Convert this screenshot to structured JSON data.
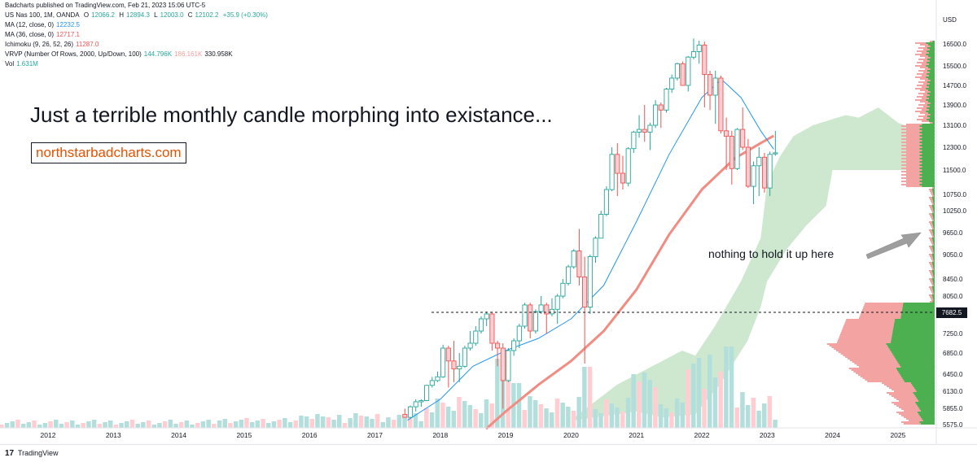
{
  "header": {
    "published": "Badcharts published on TradingView.com, Feb 21, 2023 15:06 UTC-5",
    "symbol": "US Nas 100, 1M, OANDA",
    "ohlc": {
      "o_label": "O",
      "o": "12066.2",
      "h_label": "H",
      "h": "12894.3",
      "l_label": "L",
      "l": "12003.0",
      "c_label": "C",
      "c": "12102.2",
      "change": "+35.9 (+0.30%)"
    },
    "ma12_label": "MA (12, close, 0)",
    "ma12_value": "12232.5",
    "ma36_label": "MA (36, close, 0)",
    "ma36_value": "12717.1",
    "ichimoku_label": "Ichimoku (9, 26, 52, 26)",
    "ichimoku_value": "11287.0",
    "vrvp_label": "VRVP (Number Of Rows, 2000, Up/Down, 100)",
    "vrvp_up": "144.796K",
    "vrvp_down": "186.161K",
    "vrvp_total": "330.958K",
    "vol_label": "Vol",
    "vol_value": "1.631M"
  },
  "headline": "Just a terrible monthly candle morphing into existance...",
  "site": "northstarbadcharts.com",
  "annotation": "nothing to hold it up here",
  "price_tag": "7682.5",
  "footer": {
    "logo": "17",
    "brand": "TradingView"
  },
  "colors": {
    "up": "#26a69a",
    "down": "#ef5350",
    "ma12": "#2196f3",
    "ma36": "#f28b82",
    "cloud": "#a5d6a7",
    "vol_up": "#b2dfdb",
    "vol_down": "#ffcdd2",
    "vp_up": "#4caf50",
    "vp_down": "#f4a3a3",
    "arrow": "#9e9e9e"
  },
  "chart_data": {
    "type": "candlestick",
    "currency": "USD",
    "x_ticks": [
      "2012",
      "2013",
      "2014",
      "2015",
      "2016",
      "2017",
      "2018",
      "2019",
      "2020",
      "2021",
      "2022",
      "2023",
      "2024",
      "2025"
    ],
    "y_ticks": [
      "16500.0",
      "15500.0",
      "14700.0",
      "13900.0",
      "13100.0",
      "12300.0",
      "11500.0",
      "10750.0",
      "10250.0",
      "9650.0",
      "9050.0",
      "8450.0",
      "8050.0",
      "7682.5",
      "7250.0",
      "6850.0",
      "6450.0",
      "6130.0",
      "5855.0",
      "5575.0"
    ],
    "candles": [
      {
        "t": "2017-06",
        "o": 5750,
        "h": 5850,
        "l": 5700,
        "c": 5700
      },
      {
        "t": "2017-07",
        "o": 5700,
        "h": 5900,
        "l": 5680,
        "c": 5880
      },
      {
        "t": "2017-08",
        "o": 5880,
        "h": 6000,
        "l": 5800,
        "c": 5960
      },
      {
        "t": "2017-09",
        "o": 5960,
        "h": 6000,
        "l": 5880,
        "c": 5980
      },
      {
        "t": "2017-10",
        "o": 5980,
        "h": 6250,
        "l": 5970,
        "c": 6240
      },
      {
        "t": "2017-11",
        "o": 6240,
        "h": 6400,
        "l": 6200,
        "c": 6330
      },
      {
        "t": "2017-12",
        "o": 6330,
        "h": 6500,
        "l": 6300,
        "c": 6400
      },
      {
        "t": "2018-01",
        "o": 6400,
        "h": 7020,
        "l": 6380,
        "c": 6950
      },
      {
        "t": "2018-02",
        "o": 6950,
        "h": 7000,
        "l": 6200,
        "c": 6700
      },
      {
        "t": "2018-03",
        "o": 6700,
        "h": 7100,
        "l": 6300,
        "c": 6550
      },
      {
        "t": "2018-04",
        "o": 6550,
        "h": 6850,
        "l": 6300,
        "c": 6600
      },
      {
        "t": "2018-05",
        "o": 6600,
        "h": 7000,
        "l": 6570,
        "c": 6950
      },
      {
        "t": "2018-06",
        "o": 6950,
        "h": 7300,
        "l": 6900,
        "c": 7050
      },
      {
        "t": "2018-07",
        "o": 7050,
        "h": 7400,
        "l": 7000,
        "c": 7300
      },
      {
        "t": "2018-08",
        "o": 7300,
        "h": 7600,
        "l": 7250,
        "c": 7550
      },
      {
        "t": "2018-09",
        "o": 7550,
        "h": 7700,
        "l": 7400,
        "c": 7650
      },
      {
        "t": "2018-10",
        "o": 7650,
        "h": 7700,
        "l": 6900,
        "c": 7050
      },
      {
        "t": "2018-11",
        "o": 7050,
        "h": 7100,
        "l": 6600,
        "c": 6950
      },
      {
        "t": "2018-12",
        "o": 6950,
        "h": 7050,
        "l": 5850,
        "c": 6330
      },
      {
        "t": "2019-01",
        "o": 6330,
        "h": 6950,
        "l": 6300,
        "c": 6900
      },
      {
        "t": "2019-02",
        "o": 6900,
        "h": 7150,
        "l": 6800,
        "c": 7100
      },
      {
        "t": "2019-03",
        "o": 7100,
        "h": 7450,
        "l": 6950,
        "c": 7400
      },
      {
        "t": "2019-04",
        "o": 7400,
        "h": 7900,
        "l": 7350,
        "c": 7850
      },
      {
        "t": "2019-05",
        "o": 7850,
        "h": 7900,
        "l": 7150,
        "c": 7300
      },
      {
        "t": "2019-06",
        "o": 7300,
        "h": 7750,
        "l": 7250,
        "c": 7700
      },
      {
        "t": "2019-07",
        "o": 7700,
        "h": 8050,
        "l": 7650,
        "c": 7850
      },
      {
        "t": "2019-08",
        "o": 7850,
        "h": 7900,
        "l": 7250,
        "c": 7650
      },
      {
        "t": "2019-09",
        "o": 7650,
        "h": 8000,
        "l": 7600,
        "c": 7750
      },
      {
        "t": "2019-10",
        "o": 7750,
        "h": 8100,
        "l": 7450,
        "c": 8050
      },
      {
        "t": "2019-11",
        "o": 8050,
        "h": 8450,
        "l": 8000,
        "c": 8350
      },
      {
        "t": "2019-12",
        "o": 8350,
        "h": 8800,
        "l": 8300,
        "c": 8750
      },
      {
        "t": "2020-01",
        "o": 8750,
        "h": 9200,
        "l": 8700,
        "c": 9150
      },
      {
        "t": "2020-02",
        "o": 9150,
        "h": 9750,
        "l": 8300,
        "c": 8500
      },
      {
        "t": "2020-03",
        "o": 8500,
        "h": 9000,
        "l": 6650,
        "c": 7800
      },
      {
        "t": "2020-04",
        "o": 7800,
        "h": 9050,
        "l": 7650,
        "c": 9000
      },
      {
        "t": "2020-05",
        "o": 9000,
        "h": 9550,
        "l": 8850,
        "c": 9500
      },
      {
        "t": "2020-06",
        "o": 9500,
        "h": 10250,
        "l": 9500,
        "c": 10150
      },
      {
        "t": "2020-07",
        "o": 10150,
        "h": 11000,
        "l": 10100,
        "c": 10900
      },
      {
        "t": "2020-08",
        "o": 10900,
        "h": 12300,
        "l": 10850,
        "c": 12050
      },
      {
        "t": "2020-09",
        "o": 12050,
        "h": 12450,
        "l": 10700,
        "c": 11400
      },
      {
        "t": "2020-10",
        "o": 11400,
        "h": 12000,
        "l": 10900,
        "c": 11100
      },
      {
        "t": "2020-11",
        "o": 11100,
        "h": 12300,
        "l": 11000,
        "c": 12250
      },
      {
        "t": "2020-12",
        "o": 12250,
        "h": 12900,
        "l": 12100,
        "c": 12850
      },
      {
        "t": "2021-01",
        "o": 12850,
        "h": 13500,
        "l": 12650,
        "c": 12950
      },
      {
        "t": "2021-02",
        "o": 12950,
        "h": 13900,
        "l": 12500,
        "c": 12850
      },
      {
        "t": "2021-03",
        "o": 12850,
        "h": 13200,
        "l": 12200,
        "c": 13100
      },
      {
        "t": "2021-04",
        "o": 13100,
        "h": 14100,
        "l": 13000,
        "c": 13900
      },
      {
        "t": "2021-05",
        "o": 13900,
        "h": 14000,
        "l": 13000,
        "c": 13700
      },
      {
        "t": "2021-06",
        "o": 13700,
        "h": 14600,
        "l": 13600,
        "c": 14550
      },
      {
        "t": "2021-07",
        "o": 14550,
        "h": 15150,
        "l": 14400,
        "c": 15000
      },
      {
        "t": "2021-08",
        "o": 15000,
        "h": 15650,
        "l": 14900,
        "c": 15600
      },
      {
        "t": "2021-09",
        "o": 15600,
        "h": 15700,
        "l": 14750,
        "c": 14700
      },
      {
        "t": "2021-10",
        "o": 14700,
        "h": 15950,
        "l": 14450,
        "c": 15900
      },
      {
        "t": "2021-11",
        "o": 15900,
        "h": 16750,
        "l": 15800,
        "c": 16150
      },
      {
        "t": "2021-12",
        "o": 16150,
        "h": 16650,
        "l": 15600,
        "c": 16450
      },
      {
        "t": "2022-01",
        "o": 16450,
        "h": 16600,
        "l": 13800,
        "c": 15150
      },
      {
        "t": "2022-02",
        "o": 15150,
        "h": 15300,
        "l": 13700,
        "c": 14300
      },
      {
        "t": "2022-03",
        "o": 14300,
        "h": 15300,
        "l": 13150,
        "c": 15000
      },
      {
        "t": "2022-04",
        "o": 15000,
        "h": 15100,
        "l": 12800,
        "c": 12900
      },
      {
        "t": "2022-05",
        "o": 12900,
        "h": 13400,
        "l": 11500,
        "c": 12700
      },
      {
        "t": "2022-06",
        "o": 12700,
        "h": 12900,
        "l": 11050,
        "c": 11550
      },
      {
        "t": "2022-07",
        "o": 11550,
        "h": 13000,
        "l": 11500,
        "c": 12950
      },
      {
        "t": "2022-08",
        "o": 12950,
        "h": 13800,
        "l": 12200,
        "c": 12300
      },
      {
        "t": "2022-09",
        "o": 12300,
        "h": 12600,
        "l": 10950,
        "c": 11000
      },
      {
        "t": "2022-10",
        "o": 11000,
        "h": 11800,
        "l": 10450,
        "c": 11650
      },
      {
        "t": "2022-11",
        "o": 11650,
        "h": 12300,
        "l": 10700,
        "c": 11950
      },
      {
        "t": "2022-12",
        "o": 11950,
        "h": 12100,
        "l": 10800,
        "c": 10950
      },
      {
        "t": "2023-01",
        "o": 10950,
        "h": 12150,
        "l": 10700,
        "c": 12050
      },
      {
        "t": "2023-02",
        "o": 12066.2,
        "h": 12894.3,
        "l": 12003.0,
        "c": 12102.2
      }
    ],
    "ma12": [
      [
        2017.5,
        5650
      ],
      [
        2018.0,
        6000
      ],
      [
        2018.5,
        6600
      ],
      [
        2019.0,
        6900
      ],
      [
        2019.5,
        7150
      ],
      [
        2020.0,
        7550
      ],
      [
        2020.5,
        8300
      ],
      [
        2021.0,
        9950
      ],
      [
        2021.5,
        12050
      ],
      [
        2022.0,
        14200
      ],
      [
        2022.3,
        14950
      ],
      [
        2022.6,
        14200
      ],
      [
        2022.9,
        12900
      ],
      [
        2023.1,
        12232.5
      ]
    ],
    "ma36": [
      [
        2018.7,
        5500
      ],
      [
        2019.0,
        5800
      ],
      [
        2019.5,
        6250
      ],
      [
        2020.0,
        6700
      ],
      [
        2020.5,
        7300
      ],
      [
        2021.0,
        8200
      ],
      [
        2021.5,
        9600
      ],
      [
        2022.0,
        10900
      ],
      [
        2022.5,
        11900
      ],
      [
        2022.9,
        12450
      ],
      [
        2023.1,
        12717.1
      ]
    ],
    "cloud_upper": [
      [
        2020.05,
        5700
      ],
      [
        2020.7,
        6250
      ],
      [
        2021.7,
        6900
      ],
      [
        2021.9,
        6800
      ],
      [
        2022.2,
        7400
      ],
      [
        2022.6,
        8400
      ],
      [
        2022.9,
        9500
      ],
      [
        2023.0,
        11100
      ],
      [
        2023.2,
        12000
      ],
      [
        2023.4,
        12700
      ],
      [
        2023.7,
        13100
      ],
      [
        2024.2,
        13500
      ],
      [
        2024.4,
        13400
      ],
      [
        2024.7,
        13800
      ],
      [
        2025.0,
        13200
      ],
      [
        2025.1,
        13100
      ],
      [
        2025.2,
        12900
      ]
    ],
    "cloud_lower": [
      [
        2020.05,
        5650
      ],
      [
        2021.0,
        5800
      ],
      [
        2021.4,
        5700
      ],
      [
        2021.9,
        5750
      ],
      [
        2022.3,
        6300
      ],
      [
        2022.7,
        7100
      ],
      [
        2022.9,
        7800
      ],
      [
        2023.0,
        8400
      ],
      [
        2023.3,
        9200
      ],
      [
        2023.6,
        9850
      ],
      [
        2023.9,
        10400
      ],
      [
        2024.0,
        11500
      ],
      [
        2025.2,
        11500
      ]
    ],
    "horizontal_line": 7682.5,
    "volume_profile_note": "right-side up/down volume profile"
  }
}
